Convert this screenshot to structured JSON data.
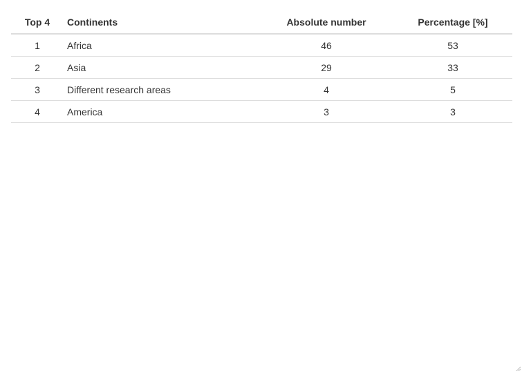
{
  "chart_data": {
    "type": "table",
    "columns": [
      "Top 4",
      "Continents",
      "Absolute number",
      "Percentage [%]"
    ],
    "rows": [
      {
        "rank": "1",
        "continent": "Africa",
        "absolute": "46",
        "percentage": "53"
      },
      {
        "rank": "2",
        "continent": "Asia",
        "absolute": "29",
        "percentage": "33"
      },
      {
        "rank": "3",
        "continent": "Different research areas",
        "absolute": "4",
        "percentage": "5"
      },
      {
        "rank": "4",
        "continent": "America",
        "absolute": "3",
        "percentage": "3"
      }
    ]
  },
  "colors": {
    "text": "#333333",
    "rule": "#dddddd",
    "background": "#ffffff"
  },
  "icons": {
    "resize": "resize-grip-icon"
  }
}
